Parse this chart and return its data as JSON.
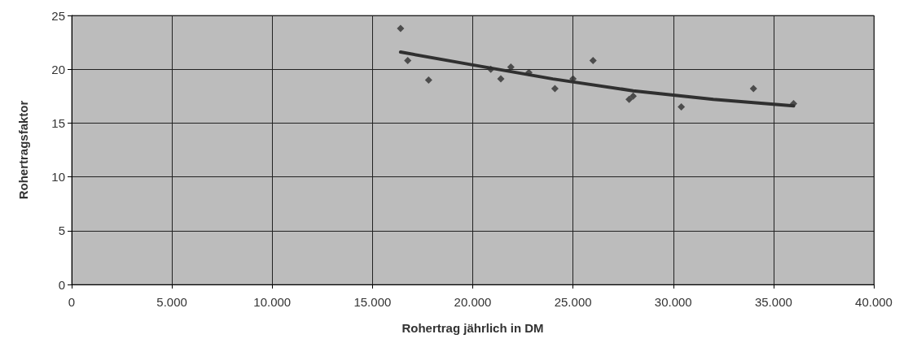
{
  "chart_data": {
    "type": "scatter",
    "xlabel": "Rohertrag jährlich in DM",
    "ylabel": "Rohertragsfaktor",
    "xlim": [
      0,
      40000
    ],
    "xticks": [
      {
        "value": 0,
        "label": "0"
      },
      {
        "value": 5000,
        "label": "5.000"
      },
      {
        "value": 10000,
        "label": "10.000"
      },
      {
        "value": 15000,
        "label": "15.000"
      },
      {
        "value": 20000,
        "label": "20.000"
      },
      {
        "value": 25000,
        "label": "25.000"
      },
      {
        "value": 30000,
        "label": "30.000"
      },
      {
        "value": 35000,
        "label": "35.000"
      },
      {
        "value": 40000,
        "label": "40.000"
      }
    ],
    "ylim": [
      0,
      25
    ],
    "yticks": [
      0,
      5,
      10,
      15,
      20,
      25
    ],
    "grid": true,
    "marker": "diamond",
    "series": [
      {
        "color": "#303030",
        "x": [
          16400,
          16760,
          17800,
          20900,
          21400,
          21900,
          22800,
          24100,
          25000,
          26000,
          27800,
          28000,
          30400,
          34000,
          36000
        ],
        "values": [
          23.8,
          20.8,
          19.0,
          20.0,
          19.1,
          20.2,
          19.7,
          18.2,
          19.1,
          20.8,
          17.2,
          17.5,
          16.5,
          18.2,
          16.8
        ]
      },
      {
        "type": "line",
        "color": "#303030",
        "marker": "none",
        "x": [
          16400,
          20000,
          24000,
          28000,
          32000,
          36000
        ],
        "values": [
          21.6,
          20.4,
          19.1,
          18.0,
          17.2,
          16.6
        ]
      }
    ]
  }
}
